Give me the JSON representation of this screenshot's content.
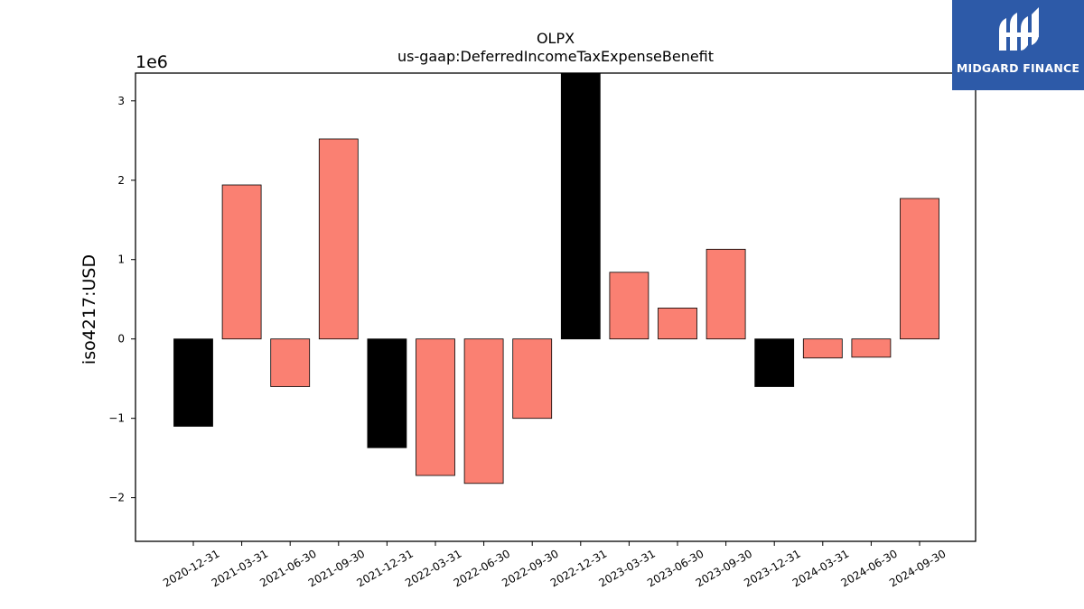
{
  "chart_data": {
    "type": "bar",
    "title": "OLPX",
    "subtitle": "us-gaap:DeferredIncomeTaxExpenseBenefit",
    "ylabel": "iso4217:USD",
    "xlabel": "",
    "offset_label": "1e6",
    "ylim": [
      -2.55,
      3.35
    ],
    "yticks": [
      -2,
      -1,
      0,
      1,
      2,
      3
    ],
    "ytick_labels": [
      "−2",
      "−1",
      "0",
      "1",
      "2",
      "3"
    ],
    "grid": false,
    "categories": [
      "2020-12-31",
      "2021-03-31",
      "2021-06-30",
      "2021-09-30",
      "2021-12-31",
      "2022-03-31",
      "2022-06-30",
      "2022-09-30",
      "2022-12-31",
      "2023-03-31",
      "2023-06-30",
      "2023-09-30",
      "2023-12-31",
      "2024-03-31",
      "2024-06-30",
      "2024-09-30"
    ],
    "values": [
      -1.1,
      1.94,
      -0.6,
      2.52,
      -1.37,
      -1.72,
      -1.82,
      -1.0,
      3.5,
      0.84,
      0.39,
      1.13,
      -0.6,
      -0.24,
      -0.23,
      1.77
    ],
    "bar_colors": [
      "#000000",
      "#fa8072",
      "#fa8072",
      "#fa8072",
      "#000000",
      "#fa8072",
      "#fa8072",
      "#fa8072",
      "#000000",
      "#fa8072",
      "#fa8072",
      "#fa8072",
      "#000000",
      "#fa8072",
      "#fa8072",
      "#fa8072"
    ]
  },
  "logo": {
    "text": "MIDGARD FINANCE",
    "icon": "midgard-finance-logo-icon",
    "background": "#2d5aa8"
  }
}
